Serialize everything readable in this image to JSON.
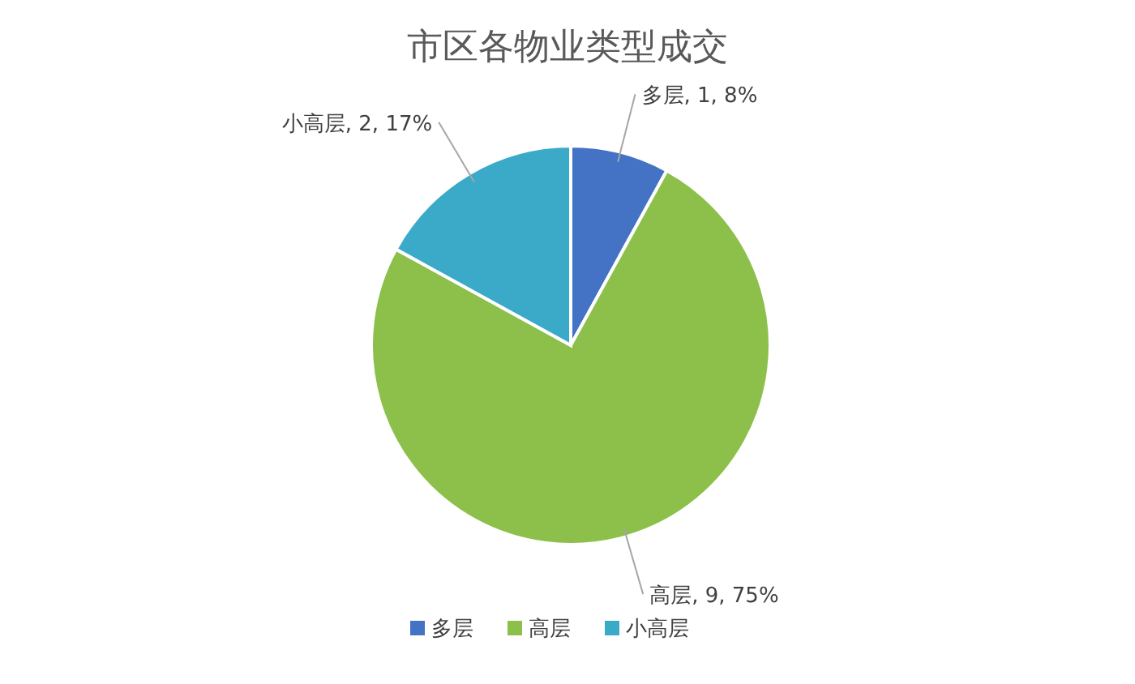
{
  "chart_data": {
    "type": "pie",
    "title": "市区各物业类型成交",
    "categories": [
      "多层",
      "高层",
      "小高层"
    ],
    "values": [
      8,
      75,
      17
    ],
    "colors": [
      "#4472c4",
      "#8cc04a",
      "#3aaac8"
    ],
    "value_labels": [
      "多层, 1, 8%",
      "高层, 9, 75%",
      "小高层, 2, 17%"
    ],
    "legend": "bottom"
  }
}
